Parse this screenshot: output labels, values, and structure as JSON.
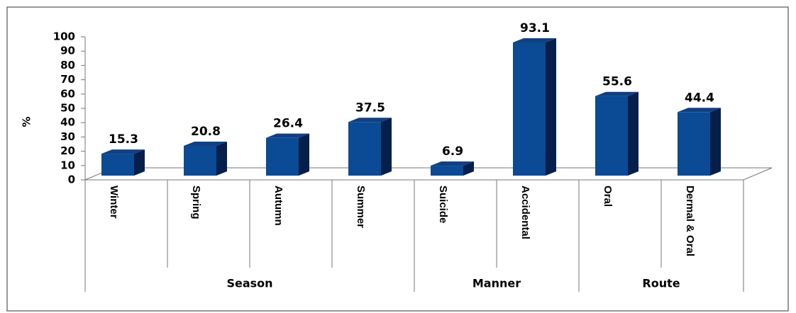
{
  "chart_data": {
    "type": "bar3d",
    "ylabel": "%",
    "categories": [
      "Winter",
      "Spring",
      "Autumn",
      "Summer",
      "Suicide",
      "Accidental",
      "Oral",
      "Dermal & Oral"
    ],
    "values": [
      15.3,
      20.8,
      26.4,
      37.5,
      6.9,
      93.1,
      55.6,
      44.4
    ],
    "groups": [
      {
        "name": "Season",
        "count": 4
      },
      {
        "name": "Manner",
        "count": 2
      },
      {
        "name": "Route",
        "count": 2
      }
    ],
    "color": "#0b4a94",
    "ylim": [
      0,
      100
    ],
    "yticks": [
      0,
      10,
      20,
      30,
      40,
      50,
      60,
      70,
      80,
      90,
      100
    ]
  }
}
